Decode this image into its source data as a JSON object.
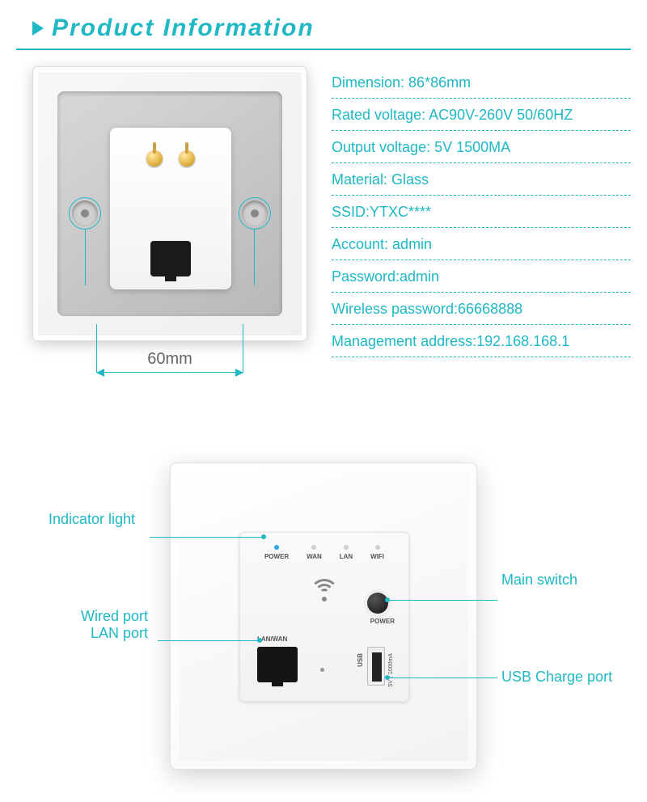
{
  "colors": {
    "accent": "#1fb8c4",
    "spec_text": "#1fb8c4",
    "callout_text": "#1fb8c4",
    "dim_line": "#1fb8c4",
    "led_blue": "#2aa8e0",
    "led_off": "#d0d0d0"
  },
  "header": {
    "title": "Product Information"
  },
  "dimensions": {
    "width_label": "60mm"
  },
  "specs": [
    "Dimension: 86*86mm",
    "Rated voltage: AC90V-260V 50/60HZ",
    "Output voltage: 5V 1500MA",
    "Material: Glass",
    "SSID:YTXC****",
    "Account: admin",
    "Password:admin",
    "Wireless password:66668888",
    "Management address:192.168.168.1"
  ],
  "front_leds": [
    {
      "label": "POWER",
      "on": true
    },
    {
      "label": "WAN",
      "on": false
    },
    {
      "label": "LAN",
      "on": false
    },
    {
      "label": "WIFI",
      "on": false
    }
  ],
  "front_labels": {
    "power": "POWER",
    "lanwan": "LAN/WAN",
    "usb": "USB",
    "usb_spec": "5V⎓1000mA"
  },
  "callouts": {
    "indicator": "Indicator light",
    "main_switch": "Main switch",
    "wired_port_l1": "Wired port",
    "wired_port_l2": "LAN port",
    "usb_charge": "USB Charge port"
  }
}
